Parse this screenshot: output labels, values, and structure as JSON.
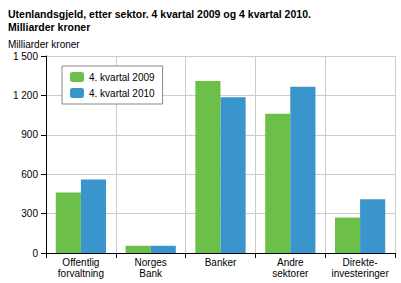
{
  "chart_data": {
    "type": "bar",
    "title": "Utenlandsgjeld, etter sektor. 4 kvartal 2009 og 4 kvartal 2010.\nMilliarder kroner",
    "y_label": "Milliarder kroner",
    "categories": [
      "Offentlig\nforvaltning",
      "Norges\nBank",
      "Banker",
      "Andre\nsektorer",
      "Direkte-\ninvesteringer"
    ],
    "series": [
      {
        "name": "4. kvartal 2009",
        "color": "#6cc04a",
        "values": [
          460,
          55,
          1310,
          1060,
          270
        ]
      },
      {
        "name": "4. kvartal 2010",
        "color": "#3a95cc",
        "values": [
          560,
          55,
          1185,
          1265,
          410
        ]
      }
    ],
    "ylim": [
      0,
      1500
    ],
    "yticks": [
      0,
      300,
      600,
      900,
      {
        "value": 1200,
        "label": "1 200"
      },
      {
        "value": 1500,
        "label": "1 500"
      }
    ],
    "grid": true,
    "legend": "upper left"
  }
}
